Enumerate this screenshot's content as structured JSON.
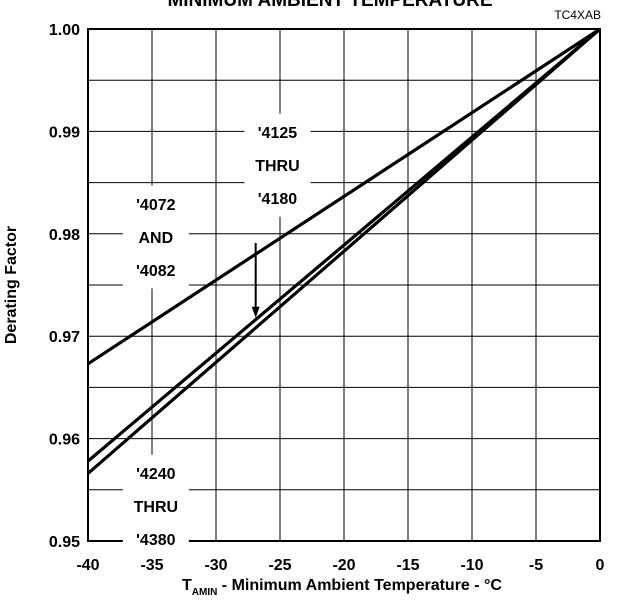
{
  "chart_data": {
    "type": "line",
    "title": "MINIMUM AMBIENT TEMPERATURE",
    "figure_code": "TC4XAB",
    "ylabel": "Derating Factor",
    "xlabel_prefix": "T",
    "xlabel_subscript": "AMIN",
    "xlabel_suffix": " - Minimum Ambient Temperature - °C",
    "xlim": [
      -40,
      0
    ],
    "ylim": [
      0.95,
      1.0
    ],
    "x_ticks": [
      -40,
      -35,
      -30,
      -25,
      -20,
      -15,
      -10,
      -5,
      0
    ],
    "x_tick_labels": [
      "-40",
      "-35",
      "-30",
      "-25",
      "-20",
      "-15",
      "-10",
      "-5",
      "0"
    ],
    "y_ticks": [
      0.95,
      0.96,
      0.97,
      0.98,
      0.99,
      1.0
    ],
    "y_tick_labels": [
      "0.95",
      "0.96",
      "0.97",
      "0.98",
      "0.99",
      "1.00"
    ],
    "grid": true,
    "series": [
      {
        "x": [
          -40,
          0
        ],
        "y": [
          0.9673,
          1.0
        ]
      },
      {
        "x": [
          -40,
          0
        ],
        "y": [
          0.9578,
          1.0
        ]
      },
      {
        "x": [
          -40,
          0
        ],
        "y": [
          0.9566,
          1.0
        ]
      }
    ],
    "annotations": [
      {
        "lines": [
          "'4072",
          "AND",
          "'4082"
        ],
        "target_x": -34.7,
        "target_y": 0.9797
      },
      {
        "lines": [
          "'4125",
          "THRU",
          "'4180"
        ],
        "target_x": -25.2,
        "target_y": 0.9867
      },
      {
        "lines": [
          "'4240",
          "THRU",
          "'4380"
        ],
        "target_x": -34.7,
        "target_y": 0.9534
      }
    ],
    "arrow": {
      "from_x": -26.9,
      "from_y": 0.9791,
      "to_x": -26.9,
      "to_y": 0.9718
    }
  }
}
